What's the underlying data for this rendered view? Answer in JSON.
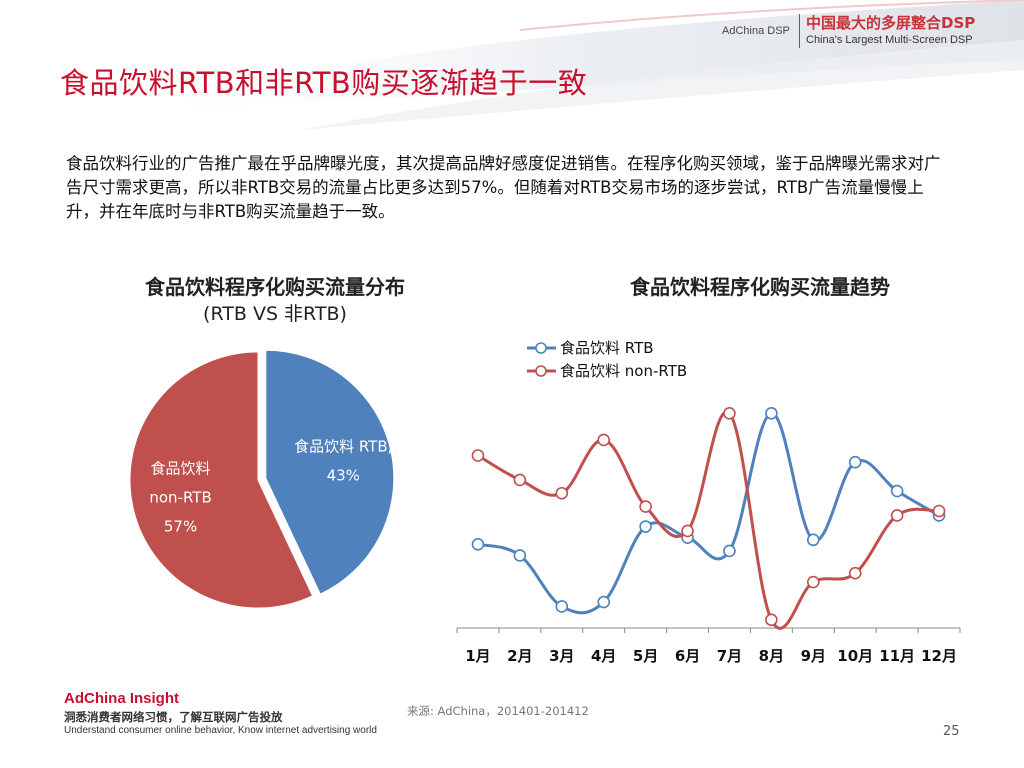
{
  "header": {
    "brand_name": "AdChina DSP",
    "brand_cn": "中国最大的多屏整合DSP",
    "brand_en": "China's Largest Multi-Screen DSP"
  },
  "title": "食品饮料RTB和非RTB购买逐渐趋于一致",
  "intro": "食品饮料行业的广告推广最在乎品牌曝光度，其次提高品牌好感度促进销售。在程序化购买领域，鉴于品牌曝光需求对广告尺寸需求更高，所以非RTB交易的流量占比更多达到57%。但随着对RTB交易市场的逐步尝试，RTB广告流量慢慢上升，并在年底时与非RTB购买流量趋于一致。",
  "colors": {
    "accent": "#c8102e",
    "rtb": "#4f81bd",
    "non_rtb": "#c0504d"
  },
  "chart_data": [
    {
      "type": "pie",
      "title": "食品饮料程序化购买流量分布",
      "subtitle": "(RTB VS 非RTB)",
      "slices": [
        {
          "name": "食品饮料 RTB",
          "value": 43,
          "label_line1": "食品饮料 RTB,",
          "label_line2": "43%",
          "color": "#4f81bd",
          "exploded": true
        },
        {
          "name": "食品饮料 non-RTB",
          "value": 57,
          "label_line1": "食品饮料",
          "label_line2": "non-RTB",
          "label_line3": "57%",
          "color": "#c0504d",
          "exploded": false
        }
      ]
    },
    {
      "type": "line",
      "title": "食品饮料程序化购买流量趋势",
      "categories": [
        "1月",
        "2月",
        "3月",
        "4月",
        "5月",
        "6月",
        "7月",
        "8月",
        "9月",
        "10月",
        "11月",
        "12月"
      ],
      "y_axis_visible": false,
      "ylim": [
        0,
        100
      ],
      "grid": false,
      "legend": "top-left",
      "series": [
        {
          "name": "食品饮料 RTB",
          "color": "#4f81bd",
          "values": [
            35,
            30,
            7,
            9,
            43,
            38,
            32,
            94,
            37,
            72,
            59,
            48
          ]
        },
        {
          "name": "食品饮料 non-RTB",
          "color": "#c0504d",
          "values": [
            75,
            64,
            58,
            82,
            52,
            41,
            94,
            1,
            18,
            22,
            48,
            50
          ]
        }
      ]
    }
  ],
  "footer": {
    "insight": "AdChina Insight",
    "cn": "洞悉消费者网络习惯，了解互联网广告投放",
    "en": "Understand consumer online behavior, Know internet advertising world",
    "source": "来源: AdChina，201401-201412",
    "page": "25"
  }
}
